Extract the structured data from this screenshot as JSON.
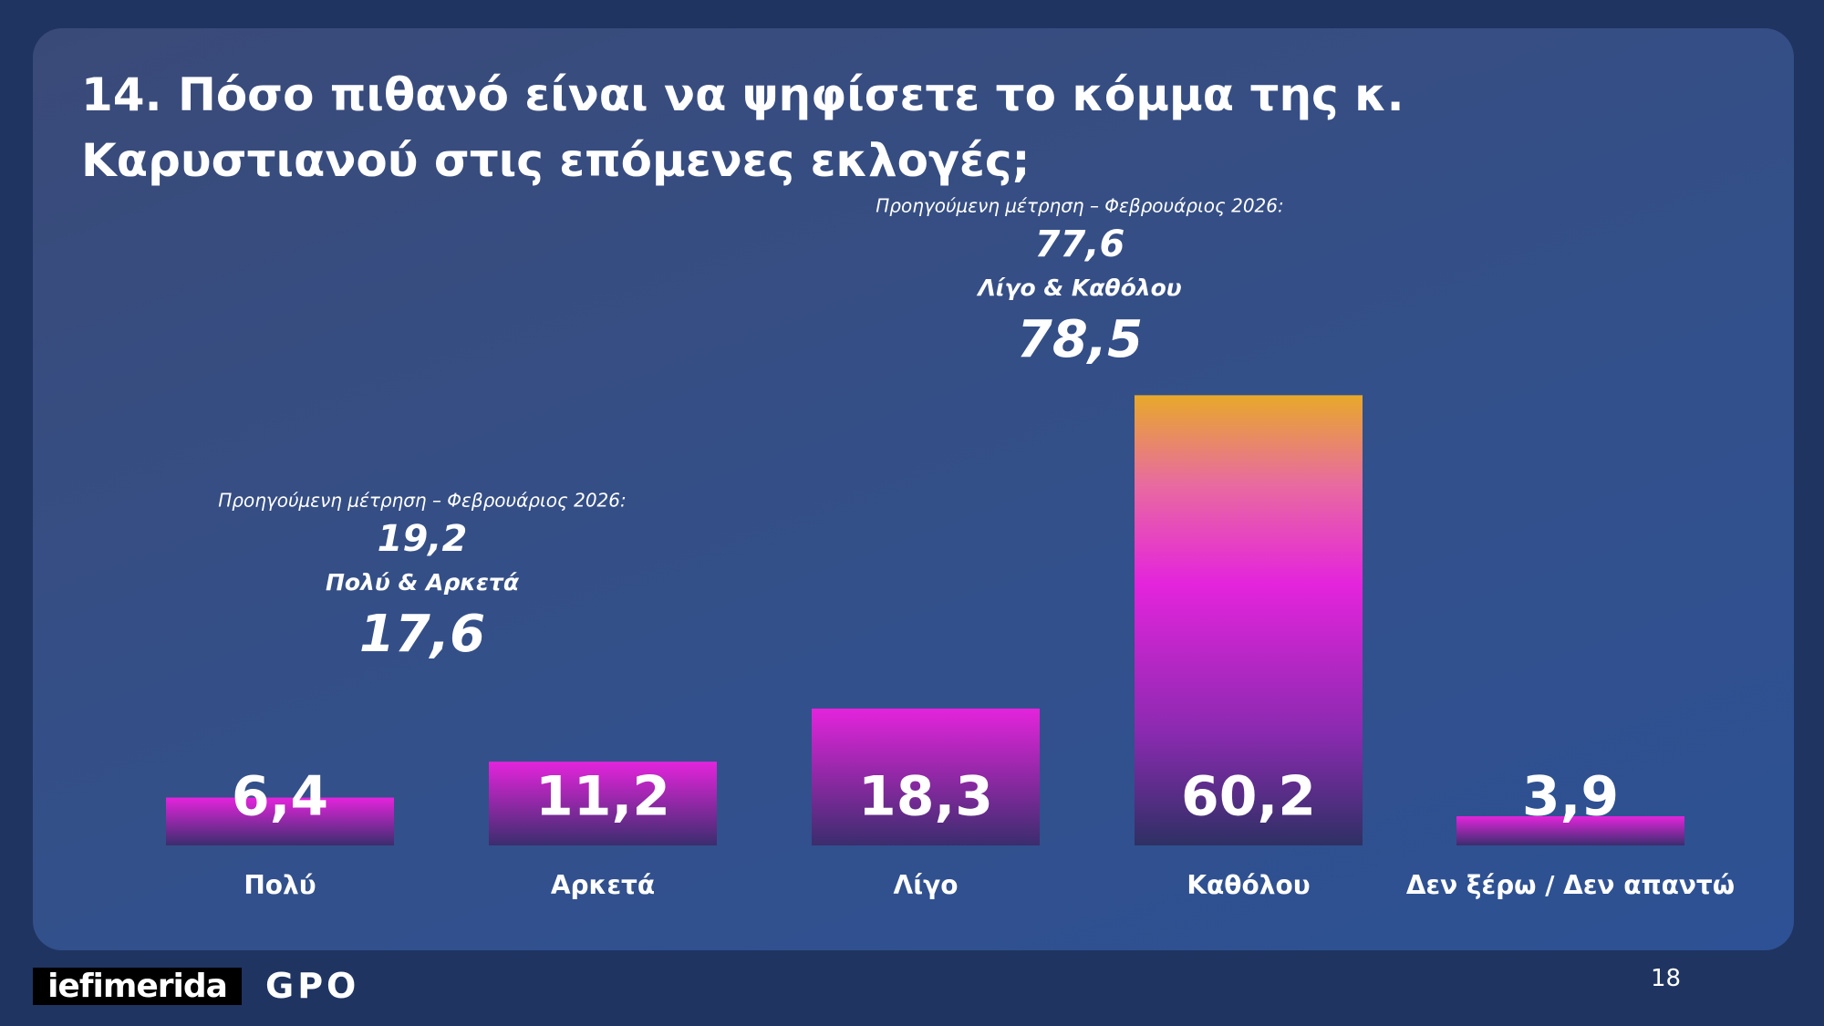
{
  "chart_data": {
    "type": "bar",
    "title": "14. Πόσο πιθανό είναι να ψηφίσετε το κόμμα της κ. Καρυστιανού στις επόμενες εκλογές;",
    "categories": [
      "Πολύ",
      "Αρκετά",
      "Λίγο",
      "Καθόλου",
      "Δεν ξέρω / Δεν απαντώ"
    ],
    "values": [
      6.4,
      11.2,
      18.3,
      60.2,
      3.9
    ],
    "value_labels": [
      "6,4",
      "11,2",
      "18,3",
      "60,2",
      "3,9"
    ],
    "ylim": [
      0,
      70
    ],
    "annotations": [
      {
        "previous_label": "Προηγούμενη μέτρηση – Φεβρουάριος 2026:",
        "previous_value": 19.2,
        "previous_value_label": "19,2",
        "group": "Πολύ & Αρκετά",
        "value": 17.6,
        "value_label": "17,6"
      },
      {
        "previous_label": "Προηγούμενη μέτρηση – Φεβρουάριος 2026:",
        "previous_value": 77.6,
        "previous_value_label": "77,6",
        "group": "Λίγο & Καθόλου",
        "value": 78.5,
        "value_label": "78,5"
      }
    ]
  },
  "footer": {
    "logo_left": "iefimerida",
    "logo_right": "GPO",
    "page_number": "18"
  }
}
